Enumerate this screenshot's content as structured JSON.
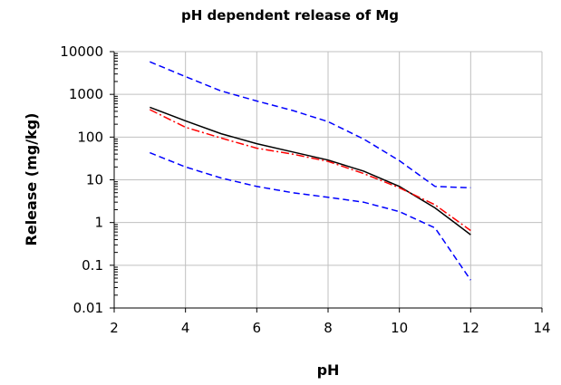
{
  "chart_data": {
    "type": "line",
    "title": "pH dependent release of Mg",
    "xlabel": "pH",
    "ylabel": "Release (mg/kg)",
    "xlim": [
      2,
      14
    ],
    "ylim": [
      0.01,
      10000
    ],
    "yscale": "log",
    "grid": true,
    "x_ticks": [
      "2",
      "4",
      "6",
      "8",
      "10",
      "12",
      "14"
    ],
    "y_ticks": [
      "0.01",
      "0.1",
      "1",
      "10",
      "100",
      "1000",
      "10000"
    ],
    "series": [
      {
        "key": "upper",
        "color": "#0000ff",
        "dash": "dashed",
        "points": [
          [
            3,
            5800
          ],
          [
            4,
            2600
          ],
          [
            5,
            1200
          ],
          [
            6,
            700
          ],
          [
            7,
            420
          ],
          [
            8,
            230
          ],
          [
            9,
            90
          ],
          [
            10,
            28
          ],
          [
            11,
            7
          ],
          [
            12,
            6.5
          ]
        ]
      },
      {
        "key": "median",
        "color": "#000000",
        "dash": "solid",
        "points": [
          [
            3,
            500
          ],
          [
            4,
            240
          ],
          [
            5,
            120
          ],
          [
            6,
            70
          ],
          [
            7,
            45
          ],
          [
            8,
            29
          ],
          [
            9,
            16
          ],
          [
            10,
            7
          ],
          [
            11,
            2.2
          ],
          [
            12,
            0.52
          ]
        ]
      },
      {
        "key": "model",
        "color": "#ff0000",
        "dash": "dashdot",
        "points": [
          [
            3,
            440
          ],
          [
            4,
            170
          ],
          [
            5,
            95
          ],
          [
            6,
            55
          ],
          [
            7,
            40
          ],
          [
            8,
            27
          ],
          [
            9,
            14
          ],
          [
            10,
            6.5
          ],
          [
            11,
            2.6
          ],
          [
            12,
            0.65
          ]
        ]
      },
      {
        "key": "lower",
        "color": "#0000ff",
        "dash": "dashed",
        "points": [
          [
            3,
            43
          ],
          [
            4,
            20
          ],
          [
            5,
            11
          ],
          [
            6,
            7
          ],
          [
            7,
            5
          ],
          [
            8,
            3.9
          ],
          [
            9,
            3
          ],
          [
            10,
            1.8
          ],
          [
            11,
            0.75
          ],
          [
            12,
            0.045
          ]
        ]
      }
    ]
  }
}
